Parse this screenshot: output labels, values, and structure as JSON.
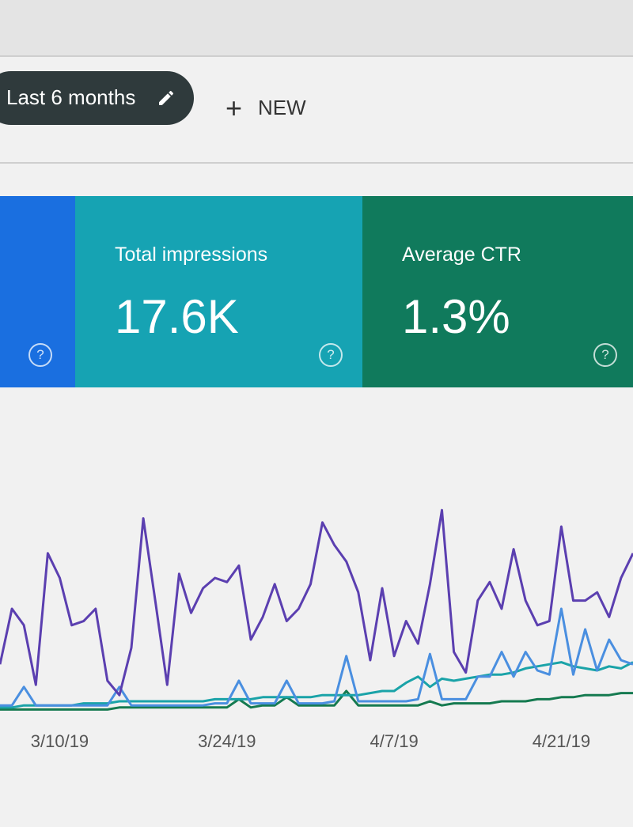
{
  "toolbar": {
    "date_range": "Last 6 months",
    "new_button": "NEW"
  },
  "metrics": [
    {
      "label": "Total impressions",
      "value": "17.6K"
    },
    {
      "label": "Average CTR",
      "value": "1.3%"
    }
  ],
  "chart_data": {
    "type": "line",
    "categories": [
      null,
      null,
      null,
      null,
      null,
      "3/10/19",
      null,
      null,
      null,
      null,
      null,
      null,
      null,
      null,
      null,
      null,
      null,
      null,
      null,
      "3/24/19",
      null,
      null,
      null,
      null,
      null,
      null,
      null,
      null,
      null,
      null,
      null,
      null,
      null,
      "4/7/19",
      null,
      null,
      null,
      null,
      null,
      null,
      null,
      null,
      null,
      null,
      null,
      null,
      null,
      "4/21/19",
      null,
      null,
      null,
      null,
      null,
      null
    ],
    "ylim": [
      0,
      100
    ],
    "series": [
      {
        "color": "#5b3fb0",
        "values": [
          23,
          50,
          42,
          13,
          77,
          65,
          42,
          44,
          50,
          15,
          8,
          31,
          94,
          54,
          13,
          67,
          48,
          60,
          65,
          63,
          71,
          35,
          46,
          62,
          44,
          50,
          62,
          92,
          81,
          73,
          58,
          25,
          60,
          27,
          44,
          33,
          62,
          98,
          29,
          19,
          54,
          63,
          50,
          79,
          54,
          42,
          44,
          90,
          54,
          54,
          58,
          46,
          65,
          77
        ]
      },
      {
        "color": "#4a8fe0",
        "values": [
          3,
          3,
          12,
          3,
          3,
          3,
          3,
          3,
          3,
          3,
          12,
          3,
          3,
          3,
          3,
          3,
          3,
          3,
          4,
          4,
          15,
          4,
          4,
          4,
          15,
          4,
          4,
          4,
          5,
          27,
          5,
          5,
          5,
          5,
          5,
          6,
          28,
          6,
          6,
          6,
          17,
          17,
          29,
          17,
          29,
          20,
          18,
          50,
          18,
          40,
          20,
          35,
          25,
          23
        ]
      },
      {
        "color": "#1aa3a8",
        "values": [
          2,
          2,
          3,
          3,
          3,
          3,
          3,
          4,
          4,
          4,
          5,
          5,
          5,
          5,
          5,
          5,
          5,
          5,
          6,
          6,
          6,
          6,
          7,
          7,
          7,
          7,
          7,
          8,
          8,
          8,
          8,
          9,
          10,
          10,
          14,
          17,
          12,
          16,
          15,
          16,
          17,
          18,
          18,
          19,
          21,
          22,
          23,
          24,
          22,
          21,
          20,
          22,
          21,
          24
        ]
      },
      {
        "color": "#157a50",
        "values": [
          1,
          1,
          1,
          1,
          1,
          1,
          1,
          1,
          1,
          1,
          2,
          2,
          2,
          2,
          2,
          2,
          2,
          2,
          2,
          2,
          6,
          2,
          3,
          3,
          7,
          3,
          3,
          3,
          3,
          10,
          3,
          3,
          3,
          3,
          3,
          3,
          5,
          3,
          4,
          4,
          4,
          4,
          5,
          5,
          5,
          6,
          6,
          7,
          7,
          8,
          8,
          8,
          9,
          9
        ]
      }
    ]
  }
}
